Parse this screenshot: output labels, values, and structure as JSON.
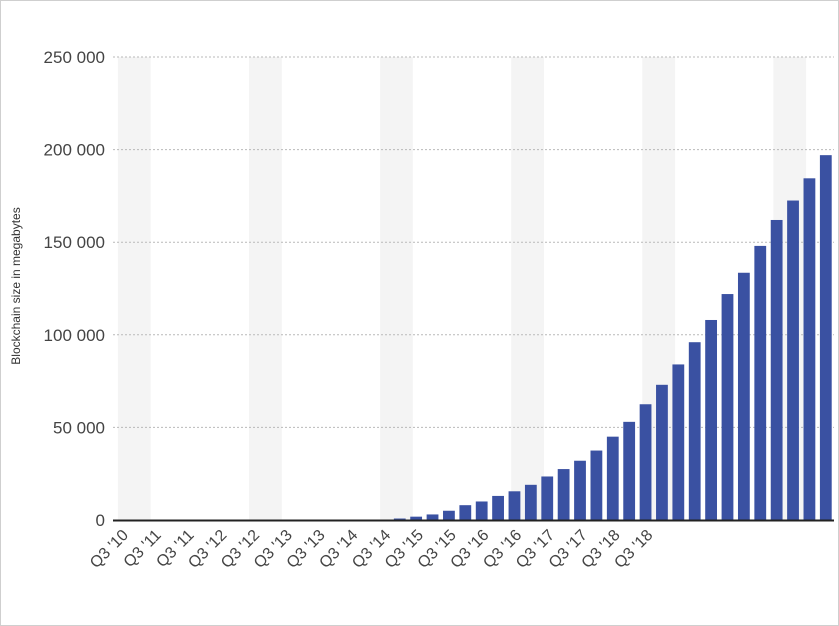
{
  "chart_data": {
    "type": "bar",
    "ylabel": "Blockchain size in megabytes",
    "xlabel": "",
    "ylim": [
      0,
      250000
    ],
    "y_ticks": [
      0,
      50000,
      100000,
      150000,
      200000,
      250000
    ],
    "y_tick_labels": [
      "0",
      "50 000",
      "100 000",
      "150 000",
      "200 000",
      "250 000"
    ],
    "x_tick_labels": [
      "Q3 '10",
      "Q3 '11",
      "Q3 '11",
      "Q3 '12",
      "Q3 '12",
      "Q3 '13",
      "Q3 '13",
      "Q3 '14",
      "Q3 '14",
      "Q3 '15",
      "Q3 '15",
      "Q3 '16",
      "Q3 '16",
      "Q3 '17",
      "Q3 '17",
      "Q3 '18",
      "Q3 '18"
    ],
    "values": [
      0,
      0,
      0,
      0,
      0,
      0,
      0,
      0,
      0,
      0,
      0,
      0,
      0,
      0,
      0,
      0,
      0,
      800,
      1800,
      3000,
      5000,
      8000,
      10000,
      13000,
      15500,
      19000,
      23500,
      27500,
      32000,
      37500,
      45000,
      53000,
      62500,
      73000,
      84000,
      96000,
      108000,
      122000,
      133500,
      148000,
      162000,
      172500,
      184500,
      197000
    ],
    "colors": {
      "bar": "#3a51a2",
      "band": "#f4f4f4",
      "grid": "#b9b9b9",
      "axis": "#222222",
      "tick_text": "#444444"
    },
    "grid": true,
    "legend": "none"
  }
}
